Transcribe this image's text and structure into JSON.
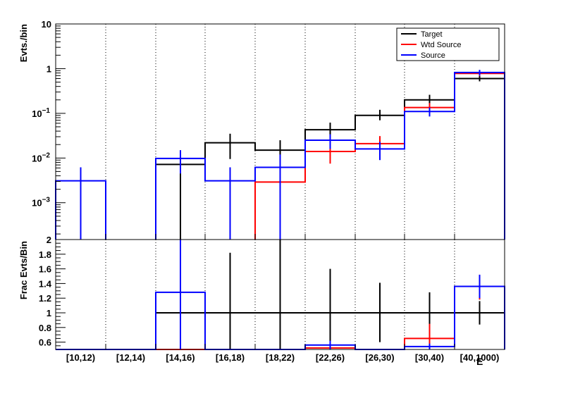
{
  "chart_data": [
    {
      "type": "histogram-step",
      "panel": "top",
      "ylabel": "Evts./bin",
      "yscale": "log",
      "ylim": [
        0.00015,
        10
      ],
      "y_ticks": [
        {
          "value": 10,
          "label": "10"
        },
        {
          "value": 1,
          "label": "1"
        },
        {
          "value": 0.1,
          "label": "10^-1",
          "base": "10",
          "exp": "−1"
        },
        {
          "value": 0.01,
          "label": "10^-2",
          "base": "10",
          "exp": "−2"
        },
        {
          "value": 0.001,
          "label": "10^-3",
          "base": "10",
          "exp": "−3"
        }
      ],
      "categories": [
        "[10,12)",
        "[12,14)",
        "[14,16)",
        "[16,18)",
        "[18,22)",
        "[22,26)",
        "[26,30)",
        "[30,40)",
        "[40,1000)"
      ],
      "legend": {
        "placement": "top-right",
        "entries": [
          {
            "name": "Target",
            "color": "#000000"
          },
          {
            "name": "Wtd Source",
            "color": "#ff0000"
          },
          {
            "name": "Source",
            "color": "#0000ff"
          }
        ]
      },
      "series": [
        {
          "name": "Target",
          "color": "#000000",
          "values": [
            null,
            null,
            0.0072,
            0.022,
            0.015,
            0.043,
            0.09,
            0.2,
            0.6
          ],
          "err_low": [
            null,
            null,
            0.00015,
            0.0095,
            0.0003,
            0.027,
            0.07,
            0.14,
            0.52
          ],
          "err_high": [
            null,
            null,
            0.011,
            0.035,
            0.025,
            0.062,
            0.12,
            0.26,
            0.72
          ]
        },
        {
          "name": "Wtd Source",
          "color": "#ff0000",
          "values": [
            null,
            null,
            null,
            null,
            0.0029,
            0.014,
            0.021,
            0.135,
            0.78
          ],
          "err_low": [
            null,
            null,
            null,
            null,
            0.00015,
            0.0075,
            0.012,
            0.1,
            0.68
          ],
          "err_high": [
            null,
            null,
            null,
            null,
            0.0055,
            0.021,
            0.031,
            0.17,
            0.88
          ]
        },
        {
          "name": "Source",
          "color": "#0000ff",
          "values": [
            0.0031,
            null,
            0.0098,
            0.0031,
            0.0062,
            0.025,
            0.016,
            0.11,
            0.82
          ],
          "err_low": [
            0.00015,
            null,
            0.0045,
            0.00015,
            0.00015,
            0.016,
            0.009,
            0.085,
            0.7
          ],
          "err_high": [
            0.0062,
            null,
            0.015,
            0.0062,
            0.012,
            0.034,
            0.023,
            0.135,
            0.94
          ]
        }
      ]
    },
    {
      "type": "histogram-step",
      "panel": "bottom",
      "ylabel": "Frac Evts/Bin",
      "ylim": [
        0.5,
        2
      ],
      "y_ticks": [
        {
          "value": 2,
          "label": "2"
        },
        {
          "value": 1.8,
          "label": "1.8"
        },
        {
          "value": 1.6,
          "label": "1.6"
        },
        {
          "value": 1.4,
          "label": "1.4"
        },
        {
          "value": 1.2,
          "label": "1.2"
        },
        {
          "value": 1,
          "label": "1"
        },
        {
          "value": 0.8,
          "label": "0.8"
        },
        {
          "value": 0.6,
          "label": "0.6"
        }
      ],
      "x_tick_labels": [
        "[10,12)",
        "[12,14)",
        "[14,16)",
        "[16,18)",
        "[18,22)",
        "[22,26)",
        "[26,30)",
        "[30,40)",
        "[40,1000)"
      ],
      "xlabel_clipped": "E",
      "series": [
        {
          "name": "Target",
          "color": "#000000",
          "values": [
            null,
            null,
            1,
            1,
            1,
            1,
            1,
            1,
            1
          ],
          "err_low": [
            null,
            null,
            0.5,
            0.5,
            0.5,
            0.5,
            0.6,
            0.72,
            0.84
          ],
          "err_high": [
            null,
            null,
            2,
            1.82,
            2,
            1.6,
            1.41,
            1.28,
            1.16
          ]
        },
        {
          "name": "Wtd Source",
          "color": "#ff0000",
          "values": [
            null,
            null,
            0.5,
            null,
            null,
            0.52,
            null,
            0.65,
            1.36
          ],
          "err_low": [
            null,
            null,
            null,
            null,
            null,
            null,
            null,
            0.5,
            1.18
          ],
          "err_high": [
            null,
            null,
            null,
            null,
            null,
            null,
            null,
            0.85,
            1.52
          ]
        },
        {
          "name": "Source",
          "color": "#0000ff",
          "values": [
            0.5,
            0.5,
            1.28,
            0.5,
            0.5,
            0.56,
            0.5,
            0.54,
            1.36
          ],
          "err_low": [
            null,
            null,
            0.5,
            null,
            null,
            0.5,
            null,
            0.5,
            1.2
          ],
          "err_high": [
            null,
            null,
            2,
            null,
            null,
            0.62,
            null,
            0.58,
            1.52
          ]
        }
      ]
    }
  ]
}
